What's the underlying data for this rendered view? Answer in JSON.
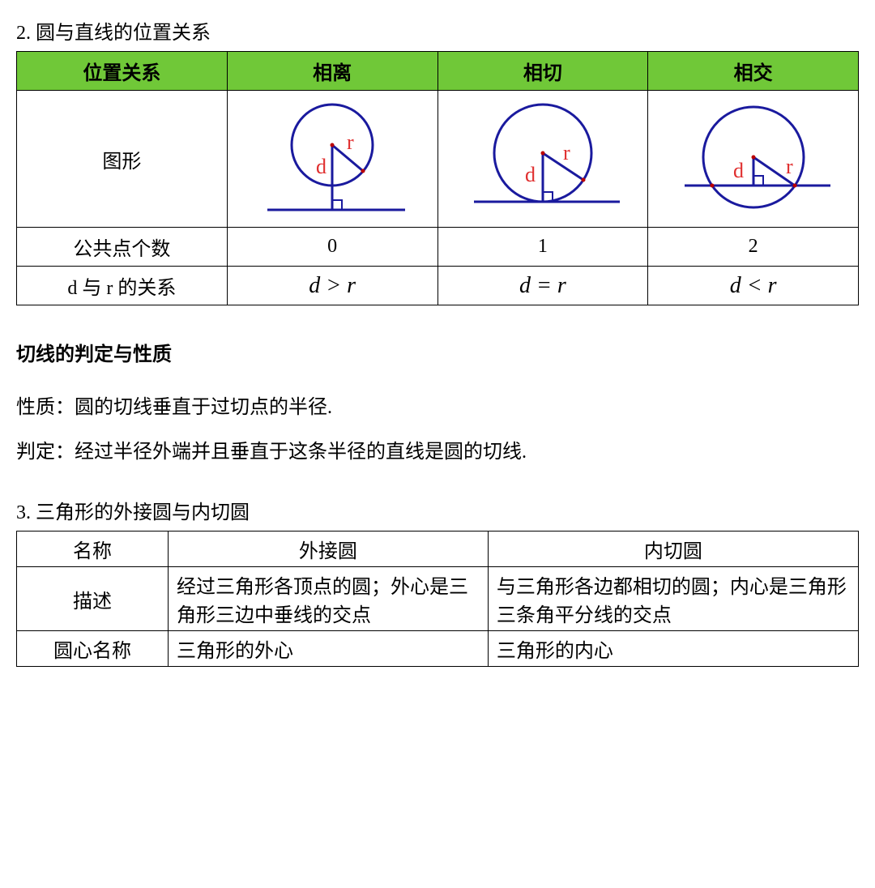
{
  "section2": {
    "title": "2. 圆与直线的位置关系",
    "table": {
      "header_bg": "#70C838",
      "cols": [
        "位置关系",
        "相离",
        "相切",
        "相交"
      ],
      "row_shape_label": "图形",
      "row_points_label": "公共点个数",
      "row_points": [
        "0",
        "1",
        "2"
      ],
      "row_rel_label": "d 与 r 的关系",
      "row_rel": [
        "d > r",
        "d = r",
        "d < r"
      ],
      "diagrams": {
        "circle_stroke": "#1a1a9e",
        "line_stroke": "#1a1a9e",
        "label_d_color": "#e03030",
        "label_r_color": "#e03030",
        "circle_fill": "none",
        "stroke_width": 3
      }
    }
  },
  "tangent": {
    "heading": "切线的判定与性质",
    "prop": "性质：圆的切线垂直于过切点的半径.",
    "det": "判定：经过半径外端并且垂直于这条半径的直线是圆的切线."
  },
  "section3": {
    "title": "3. 三角形的外接圆与内切圆",
    "table": {
      "col_widths": [
        "18%",
        "38%",
        "44%"
      ],
      "header": [
        "名称",
        "外接圆",
        "内切圆"
      ],
      "row_desc_label": "描述",
      "row_desc": [
        "经过三角形各顶点的圆；外心是三角形三边中垂线的交点",
        "与三角形各边都相切的圆；内心是三角形三条角平分线的交点"
      ],
      "row_center_label": "圆心名称",
      "row_center": [
        "三角形的外心",
        "三角形的内心"
      ]
    }
  }
}
